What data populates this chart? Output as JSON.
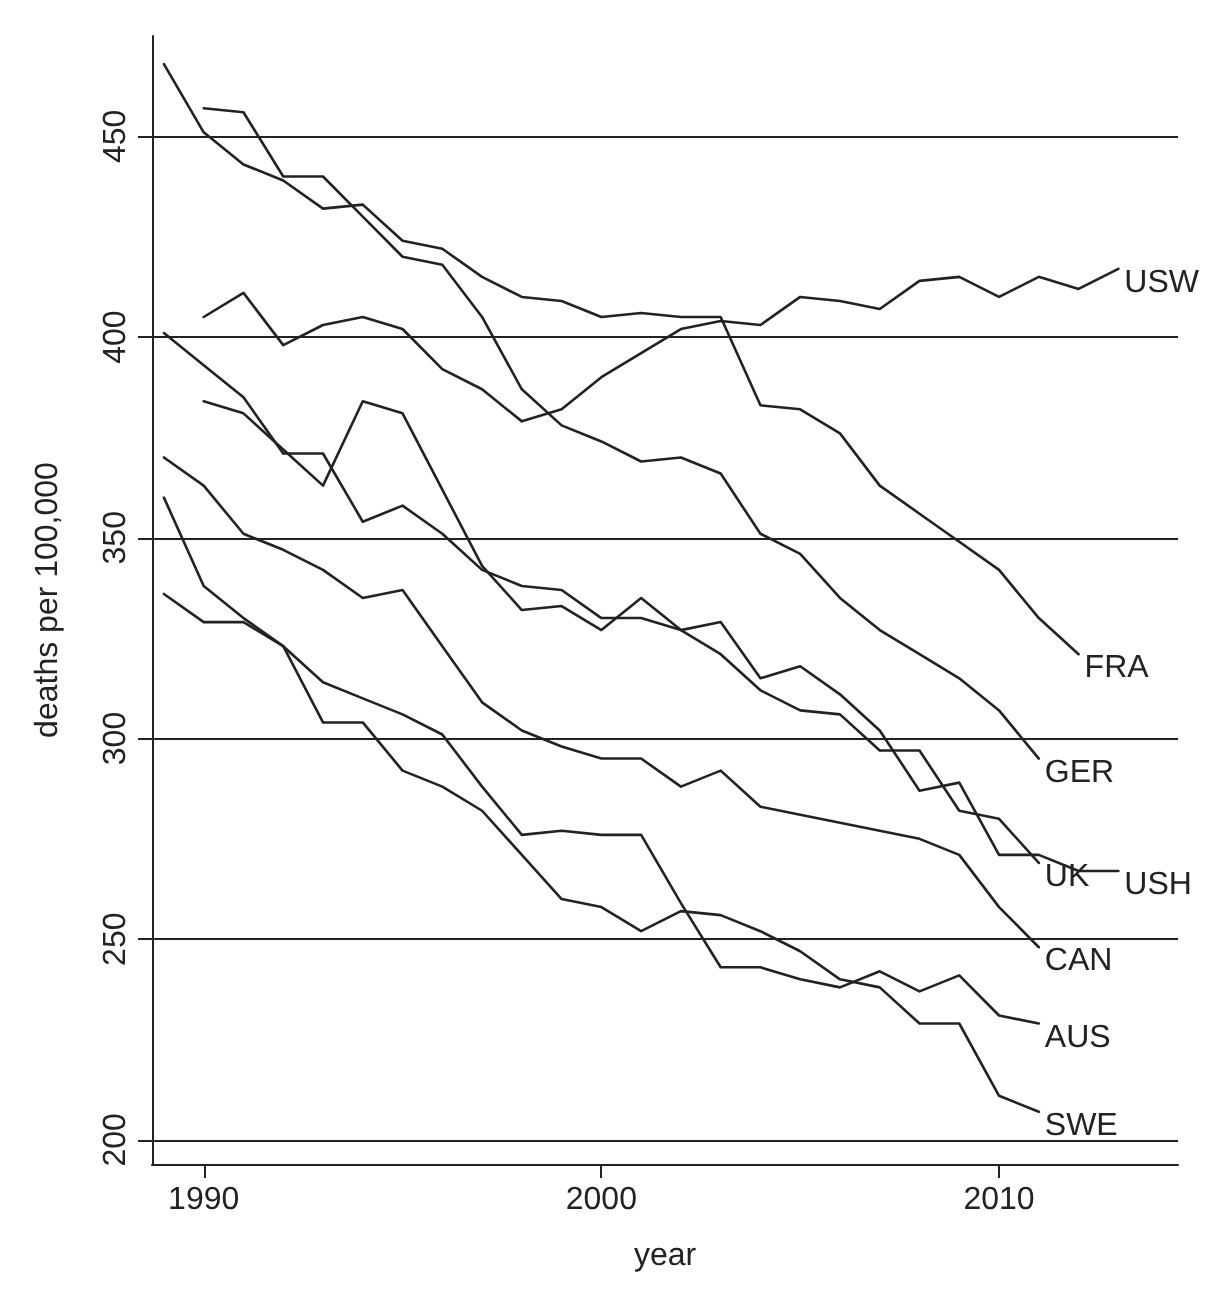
{
  "chart_data": {
    "type": "line",
    "xlabel": "year",
    "ylabel": "deaths per 100,000",
    "xlim": [
      1988.7,
      2014.5
    ],
    "xticks": [
      1990,
      2000,
      2010
    ],
    "ylim": [
      194,
      475
    ],
    "yticks": [
      200,
      250,
      300,
      350,
      400,
      450
    ],
    "grid": "y",
    "legend": false,
    "marker": "none",
    "line_style": "solid",
    "series": [
      {
        "name": "USW",
        "color": "#222222",
        "x": [
          1990,
          1991,
          1992,
          1993,
          1994,
          1995,
          1996,
          1997,
          1998,
          1999,
          2000,
          2001,
          2002,
          2003,
          2004,
          2005,
          2006,
          2007,
          2008,
          2009,
          2010,
          2011,
          2012,
          2013
        ],
        "values": [
          405,
          411,
          398,
          403,
          405,
          402,
          392,
          387,
          379,
          382,
          390,
          396,
          402,
          404,
          403,
          410,
          409,
          407,
          414,
          415,
          410,
          415,
          412,
          417
        ]
      },
      {
        "name": "FRA",
        "color": "#222222",
        "x": [
          1989,
          1990,
          1991,
          1992,
          1993,
          1994,
          1995,
          1996,
          1997,
          1998,
          1999,
          2000,
          2001,
          2002,
          2003,
          2004,
          2005,
          2006,
          2007,
          2008,
          2009,
          2010,
          2011,
          2012
        ],
        "values": [
          468,
          451,
          443,
          439,
          432,
          433,
          424,
          422,
          415,
          410,
          409,
          405,
          406,
          405,
          405,
          383,
          382,
          376,
          363,
          356,
          349,
          342,
          330,
          321
        ]
      },
      {
        "name": "GER",
        "color": "#222222",
        "x": [
          1990,
          1991,
          1992,
          1993,
          1994,
          1995,
          1996,
          1997,
          1998,
          1999,
          2000,
          2001,
          2002,
          2003,
          2004,
          2005,
          2006,
          2007,
          2008,
          2009,
          2010,
          2011
        ],
        "values": [
          457,
          456,
          440,
          440,
          430,
          420,
          418,
          405,
          387,
          378,
          374,
          369,
          370,
          366,
          351,
          346,
          335,
          327,
          321,
          315,
          307,
          295
        ]
      },
      {
        "name": "USH",
        "color": "#222222",
        "x": [
          1990,
          1991,
          1992,
          1993,
          1994,
          1995,
          1996,
          1997,
          1998,
          1999,
          2000,
          2001,
          2002,
          2003,
          2004,
          2005,
          2006,
          2007,
          2008,
          2009,
          2010,
          2011,
          2012,
          2013
        ],
        "values": [
          384,
          381,
          372,
          363,
          384,
          381,
          362,
          343,
          332,
          333,
          327,
          335,
          327,
          329,
          315,
          318,
          311,
          302,
          287,
          289,
          271,
          271,
          267,
          267
        ]
      },
      {
        "name": "UK",
        "color": "#222222",
        "x": [
          1989,
          1990,
          1991,
          1992,
          1993,
          1994,
          1995,
          1996,
          1997,
          1998,
          1999,
          2000,
          2001,
          2002,
          2003,
          2004,
          2005,
          2006,
          2007,
          2008,
          2009,
          2010,
          2011
        ],
        "values": [
          401,
          393,
          385,
          371,
          371,
          354,
          358,
          351,
          342,
          338,
          337,
          330,
          330,
          327,
          321,
          312,
          307,
          306,
          297,
          297,
          282,
          280,
          269
        ]
      },
      {
        "name": "CAN",
        "color": "#222222",
        "x": [
          1989,
          1990,
          1991,
          1992,
          1993,
          1994,
          1995,
          1996,
          1997,
          1998,
          1999,
          2000,
          2001,
          2002,
          2003,
          2004,
          2005,
          2006,
          2007,
          2008,
          2009,
          2010,
          2011
        ],
        "values": [
          370,
          363,
          351,
          347,
          342,
          335,
          337,
          323,
          309,
          302,
          298,
          295,
          295,
          288,
          292,
          283,
          281,
          279,
          277,
          275,
          271,
          258,
          248
        ]
      },
      {
        "name": "AUS",
        "color": "#222222",
        "x": [
          1989,
          1990,
          1991,
          1992,
          1993,
          1994,
          1995,
          1996,
          1997,
          1998,
          1999,
          2000,
          2001,
          2002,
          2003,
          2004,
          2005,
          2006,
          2007,
          2008,
          2009,
          2010,
          2011
        ],
        "values": [
          360,
          338,
          330,
          323,
          314,
          310,
          306,
          301,
          288,
          276,
          277,
          276,
          276,
          259,
          243,
          243,
          240,
          238,
          242,
          237,
          241,
          231,
          229
        ]
      },
      {
        "name": "SWE",
        "color": "#222222",
        "x": [
          1989,
          1990,
          1991,
          1992,
          1993,
          1994,
          1995,
          1996,
          1997,
          1998,
          1999,
          2000,
          2001,
          2002,
          2003,
          2004,
          2005,
          2006,
          2007,
          2008,
          2009,
          2010,
          2011
        ],
        "values": [
          336,
          329,
          329,
          323,
          304,
          304,
          292,
          288,
          282,
          271,
          260,
          258,
          252,
          257,
          256,
          252,
          247,
          240,
          238,
          229,
          229,
          211,
          207
        ]
      }
    ]
  }
}
